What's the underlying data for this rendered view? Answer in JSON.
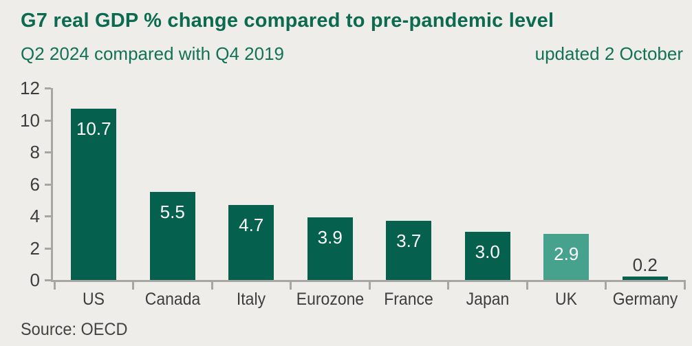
{
  "chart_data": {
    "type": "bar",
    "title": "G7 real GDP % change compared to pre-pandemic level",
    "subtitle": "Q2 2024 compared with Q4 2019",
    "annotation": "updated 2 October",
    "source": "Source: OECD",
    "categories": [
      "US",
      "Canada",
      "Italy",
      "Eurozone",
      "France",
      "Japan",
      "UK",
      "Germany"
    ],
    "values": [
      10.7,
      5.5,
      4.7,
      3.9,
      3.7,
      3.0,
      2.9,
      0.2
    ],
    "value_labels": [
      "10.7",
      "5.5",
      "4.7",
      "3.9",
      "3.7",
      "3.0",
      "2.9",
      "0.2"
    ],
    "highlighted_category": "UK",
    "ylim": [
      0,
      12
    ],
    "yticks": [
      0,
      2,
      4,
      6,
      8,
      10,
      12
    ],
    "grid": "off",
    "legend": "none",
    "colors": {
      "background": "#EFEDEA",
      "title": "#0B6A50",
      "subtitle": "#117257",
      "bar": "#05604E",
      "highlight": "#46A28D",
      "axis": "#A8A6A3",
      "tick_label": "#3E3D3B",
      "value_label_inside": "#FFFFFF",
      "value_label_outside": "#3E3D3B",
      "source": "#454341"
    }
  }
}
